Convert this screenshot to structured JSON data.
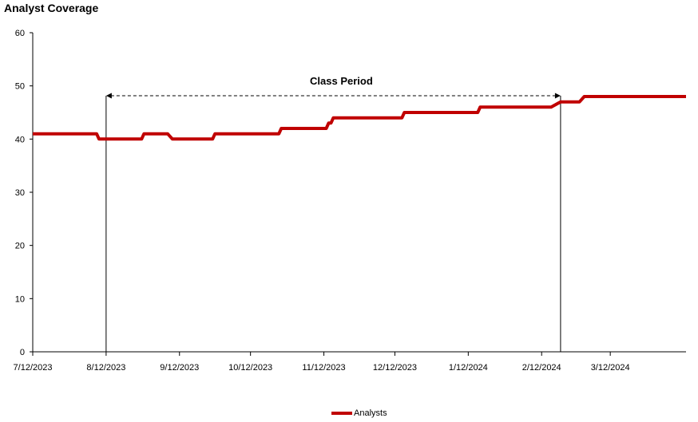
{
  "chart_data": {
    "type": "line",
    "title": "Analyst Coverage",
    "xlabel": "",
    "ylabel": "",
    "ylim": [
      0,
      60
    ],
    "yticks": [
      0,
      10,
      20,
      30,
      40,
      50,
      60
    ],
    "xlim": [
      "2023-07-12",
      "2024-04-13"
    ],
    "xticks": [
      "2023-07-12",
      "2023-08-12",
      "2023-09-12",
      "2023-10-12",
      "2023-11-12",
      "2023-12-12",
      "2024-01-12",
      "2024-02-12",
      "2024-03-12"
    ],
    "xtick_labels": [
      "7/12/2023",
      "8/12/2023",
      "9/12/2023",
      "10/12/2023",
      "11/12/2023",
      "12/12/2023",
      "1/12/2024",
      "2/12/2024",
      "3/12/2024"
    ],
    "color": "#c00000",
    "grid": false,
    "legend": "bottom",
    "series": [
      {
        "name": "Analysts",
        "x": [
          "2023-07-12",
          "2023-08-08",
          "2023-08-09",
          "2023-08-27",
          "2023-08-28",
          "2023-09-07",
          "2023-09-09",
          "2023-09-26",
          "2023-09-27",
          "2023-10-24",
          "2023-10-25",
          "2023-11-13",
          "2023-11-14",
          "2023-11-15",
          "2023-11-16",
          "2023-12-15",
          "2023-12-16",
          "2024-01-16",
          "2024-01-17",
          "2024-02-16",
          "2024-02-20",
          "2024-02-28",
          "2024-03-01",
          "2024-04-13"
        ],
        "values": [
          41,
          41,
          40,
          40,
          41,
          41,
          40,
          40,
          41,
          41,
          42,
          42,
          43,
          43,
          44,
          44,
          45,
          45,
          46,
          46,
          47,
          47,
          48,
          48
        ]
      }
    ],
    "annotations": [
      {
        "text": "Class Period",
        "start": "2023-08-12",
        "end": "2024-02-20"
      }
    ]
  }
}
